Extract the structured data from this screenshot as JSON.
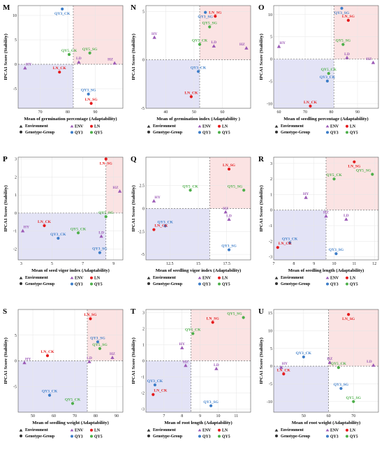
{
  "groups": {
    "ENV": {
      "label": "ENV",
      "color": "#9b59b6"
    },
    "LN": {
      "label": "LN",
      "color": "#e41a1c"
    },
    "QY3": {
      "label": "QY3",
      "color": "#3d7dc8"
    },
    "QY5": {
      "label": "QY5",
      "color": "#4daf4a"
    }
  },
  "legend": {
    "environment_label": "Environment",
    "genotype_label": "Genotype-Group",
    "env_items": [
      "ENV",
      "LN"
    ],
    "geno_items": [
      "QY3",
      "QY5"
    ]
  },
  "colors": {
    "high_quadrant": "#fbe3e3",
    "low_quadrant": "#e3e3f6",
    "grid": "#e6e6e6",
    "ref_line": "#777777"
  },
  "chart_data": [
    {
      "panel": "M",
      "type": "scatter",
      "xlabel": "Mean of germination percentage (Adaptability)",
      "ylabel": "IPCA1 Score (Stability)",
      "xlim": [
        62,
        100
      ],
      "ylim": [
        -9,
        12
      ],
      "xticks": [
        70,
        80,
        90
      ],
      "yticks": [
        -5,
        0,
        5,
        10
      ],
      "xref": 82,
      "yref": 0,
      "points": [
        {
          "label": "QY3_CK",
          "group": "QY3",
          "x": 78,
          "y": 11.3
        },
        {
          "label": "QY5_SG",
          "group": "QY5",
          "x": 88,
          "y": 2.3
        },
        {
          "label": "QY5_CK",
          "group": "QY5",
          "x": 80.5,
          "y": 2.0
        },
        {
          "label": "LD",
          "group": "ENV",
          "x": 84,
          "y": 0.4
        },
        {
          "label": "HZ",
          "group": "ENV",
          "x": 97,
          "y": 0.2
        },
        {
          "label": "HY",
          "group": "ENV",
          "x": 64.5,
          "y": -0.8
        },
        {
          "label": "LN_CK",
          "group": "LN",
          "x": 77,
          "y": -1.6
        },
        {
          "label": "QY3_SG",
          "group": "QY3",
          "x": 87.5,
          "y": -6.1
        },
        {
          "label": "LN_SG",
          "group": "LN",
          "x": 88.5,
          "y": -8.0
        }
      ]
    },
    {
      "panel": "N",
      "type": "scatter",
      "xlabel": "Mean of germination index (Adaptability )",
      "ylabel": "IPCA1 Score (Stability)",
      "xlim": [
        33,
        70
      ],
      "ylim": [
        -5,
        5.6
      ],
      "xticks": [
        40,
        50,
        60
      ],
      "yticks": [
        -5,
        0,
        5
      ],
      "xref": 52,
      "yref": 0,
      "points": [
        {
          "label": "QY3_SG",
          "group": "QY3",
          "x": 54,
          "y": 4.9
        },
        {
          "label": "LN_SG",
          "group": "LN",
          "x": 57.5,
          "y": 4.5
        },
        {
          "label": "QY5_SG",
          "group": "QY5",
          "x": 55.5,
          "y": 3.4
        },
        {
          "label": "HY",
          "group": "ENV",
          "x": 36,
          "y": 2.3
        },
        {
          "label": "QY5_CK",
          "group": "QY5",
          "x": 52,
          "y": 1.6
        },
        {
          "label": "HZ",
          "group": "ENV",
          "x": 68.5,
          "y": 1.2
        },
        {
          "label": "LD",
          "group": "ENV",
          "x": 57,
          "y": 1.4
        },
        {
          "label": "QY3_CK",
          "group": "QY3",
          "x": 51.5,
          "y": -1.2
        },
        {
          "label": "LN_CK",
          "group": "LN",
          "x": 49,
          "y": -3.8
        }
      ]
    },
    {
      "panel": "O",
      "type": "scatter",
      "xlabel": "Mean of seedling percentage (Adaptability)",
      "ylabel": "IPCA1 Score (Stability)",
      "xlim": [
        58,
        98
      ],
      "ylim": [
        -11,
        12
      ],
      "xticks": [
        60,
        70,
        80,
        90
      ],
      "yticks": [
        -10,
        -5,
        0,
        5,
        10
      ],
      "xref": 81,
      "yref": 0,
      "points": [
        {
          "label": "QY3_SG",
          "group": "QY3",
          "x": 84,
          "y": 11.4
        },
        {
          "label": "LN_SG",
          "group": "LN",
          "x": 86.5,
          "y": 8.7
        },
        {
          "label": "QY5_SG",
          "group": "QY5",
          "x": 84.5,
          "y": 3.3
        },
        {
          "label": "HY",
          "group": "ENV",
          "x": 60,
          "y": 2.8
        },
        {
          "label": "LD",
          "group": "ENV",
          "x": 86,
          "y": 0.3
        },
        {
          "label": "HZ",
          "group": "ENV",
          "x": 96,
          "y": -0.8
        },
        {
          "label": "QY5_CK",
          "group": "QY5",
          "x": 79,
          "y": -3.2
        },
        {
          "label": "QY3_CK",
          "group": "QY3",
          "x": 78.5,
          "y": -4.9
        },
        {
          "label": "LN_CK",
          "group": "LN",
          "x": 72,
          "y": -10.5
        }
      ]
    },
    {
      "panel": "P",
      "type": "scatter",
      "xlabel": "Mean of seed vigor index (Adaptability)",
      "ylabel": "IPCA1 Score (Stability)",
      "xlim": [
        2.8,
        9.6
      ],
      "ylim": [
        -2.6,
        3.1
      ],
      "xticks": [
        3,
        5,
        7,
        9
      ],
      "yticks": [
        -2,
        -1,
        0,
        1,
        2,
        3
      ],
      "xref": 8.5,
      "yref": 0,
      "points": [
        {
          "label": "LN_SG",
          "group": "LN",
          "x": 8.5,
          "y": 3.0
        },
        {
          "label": "HZ",
          "group": "ENV",
          "x": 9.4,
          "y": 1.2
        },
        {
          "label": "QY5_SG",
          "group": "QY5",
          "x": 8.5,
          "y": -0.2
        },
        {
          "label": "LN_CK",
          "group": "LN",
          "x": 4.5,
          "y": -0.7
        },
        {
          "label": "HY",
          "group": "ENV",
          "x": 3.1,
          "y": -1.0
        },
        {
          "label": "QY5_CK",
          "group": "QY5",
          "x": 6.7,
          "y": -1.1
        },
        {
          "label": "QY3_CK",
          "group": "QY3",
          "x": 5.4,
          "y": -1.4
        },
        {
          "label": "LD",
          "group": "ENV",
          "x": 8.2,
          "y": -1.3
        },
        {
          "label": "QY3_SG",
          "group": "QY3",
          "x": 8.1,
          "y": -2.2
        }
      ]
    },
    {
      "panel": "Q",
      "type": "scatter",
      "xlabel": "Mean of seedling vigor index (Adaptability)",
      "ylabel": "IPCA1 Score (Stability)",
      "xlim": [
        10.4,
        19.6
      ],
      "ylim": [
        -5.6,
        5.6
      ],
      "xticks": [
        12.5,
        15.0,
        17.5
      ],
      "yticks": [
        -5.0,
        -2.5,
        0.0,
        2.5
      ],
      "xref": 16,
      "yref": 0,
      "points": [
        {
          "label": "LN_SG",
          "group": "LN",
          "x": 17.7,
          "y": 4.3
        },
        {
          "label": "QY5_CK",
          "group": "QY5",
          "x": 14.3,
          "y": 2.0
        },
        {
          "label": "QY5_SG",
          "group": "QY5",
          "x": 19.0,
          "y": 2.0
        },
        {
          "label": "HY",
          "group": "ENV",
          "x": 11.1,
          "y": 0.8
        },
        {
          "label": "HZ",
          "group": "ENV",
          "x": 17.4,
          "y": -0.4
        },
        {
          "label": "LD",
          "group": "ENV",
          "x": 17.7,
          "y": -1.2
        },
        {
          "label": "QY3_CK",
          "group": "QY3",
          "x": 12.1,
          "y": -1.9
        },
        {
          "label": "LN_CK",
          "group": "LN",
          "x": 11.1,
          "y": -2.3
        },
        {
          "label": "QY3_SG",
          "group": "QY3",
          "x": 17.7,
          "y": -4.5
        }
      ]
    },
    {
      "panel": "R",
      "type": "scatter",
      "xlabel": "Mean of seedling length (Adaptability)",
      "ylabel": "IPCA1 Score (Stability)",
      "xlim": [
        7.0,
        12.2
      ],
      "ylim": [
        -3.2,
        3.4
      ],
      "xticks": [
        7,
        8,
        9,
        10,
        11,
        12
      ],
      "yticks": [
        -3,
        -2,
        -1,
        0,
        1,
        2,
        3
      ],
      "xref": 9.6,
      "yref": 0,
      "points": [
        {
          "label": "LN_SG",
          "group": "LN",
          "x": 11.0,
          "y": 3.1
        },
        {
          "label": "QY5_CK",
          "group": "QY5",
          "x": 10.0,
          "y": 2.0
        },
        {
          "label": "QY5_SG",
          "group": "QY5",
          "x": 11.9,
          "y": 2.3
        },
        {
          "label": "HY",
          "group": "ENV",
          "x": 8.6,
          "y": 0.8
        },
        {
          "label": "HZ",
          "group": "ENV",
          "x": 9.6,
          "y": -0.4
        },
        {
          "label": "LD",
          "group": "ENV",
          "x": 10.6,
          "y": -0.6
        },
        {
          "label": "QY3_CK",
          "group": "QY3",
          "x": 7.8,
          "y": -2.1
        },
        {
          "label": "LN_CK",
          "group": "LN",
          "x": 7.2,
          "y": -2.4
        },
        {
          "label": "QY3_SG",
          "group": "QY3",
          "x": 10.1,
          "y": -2.8
        }
      ]
    },
    {
      "panel": "S",
      "type": "scatter",
      "xlabel": "Mean of seedling weight (Adaptability)",
      "ylabel": "IPCA1 Score (Stability)",
      "xlim": [
        43,
        93
      ],
      "ylim": [
        -10,
        10
      ],
      "xticks": [
        50,
        60,
        70,
        80,
        90
      ],
      "yticks": [
        -5,
        0,
        5
      ],
      "xref": 76,
      "yref": 0,
      "points": [
        {
          "label": "LN_SG",
          "group": "LN",
          "x": 77.5,
          "y": 8.2
        },
        {
          "label": "QY3_SG",
          "group": "QY3",
          "x": 81,
          "y": 3.7
        },
        {
          "label": "QY5_SG",
          "group": "QY5",
          "x": 82,
          "y": 2.4
        },
        {
          "label": "LN_CK",
          "group": "LN",
          "x": 57,
          "y": 1.0
        },
        {
          "label": "HZ",
          "group": "ENV",
          "x": 88,
          "y": 0.6
        },
        {
          "label": "HY",
          "group": "ENV",
          "x": 46,
          "y": -0.4
        },
        {
          "label": "LD",
          "group": "ENV",
          "x": 77,
          "y": -0.2
        },
        {
          "label": "QY3_CK",
          "group": "QY3",
          "x": 58,
          "y": -6.7
        },
        {
          "label": "QY5_CK",
          "group": "QY5",
          "x": 69,
          "y": -8.3
        }
      ]
    },
    {
      "panel": "T",
      "type": "scatter",
      "xlabel": "Mean of root length (Adaptability)",
      "ylabel": "IPCA1 Score (Stability)",
      "xlim": [
        6.0,
        11.8
      ],
      "ylim": [
        -3.2,
        3.2
      ],
      "xticks": [
        7,
        8,
        9,
        10,
        11
      ],
      "yticks": [
        -3,
        -2,
        -1,
        0,
        1,
        2,
        3
      ],
      "xref": 8.5,
      "yref": 0,
      "points": [
        {
          "label": "QY5_SG",
          "group": "QY5",
          "x": 11.4,
          "y": 2.7
        },
        {
          "label": "LN_SG",
          "group": "LN",
          "x": 9.7,
          "y": 2.4
        },
        {
          "label": "QY5_CK",
          "group": "QY5",
          "x": 8.6,
          "y": 1.7
        },
        {
          "label": "HY",
          "group": "ENV",
          "x": 8.0,
          "y": 0.8
        },
        {
          "label": "HZ",
          "group": "ENV",
          "x": 8.2,
          "y": -0.3
        },
        {
          "label": "LD",
          "group": "ENV",
          "x": 9.9,
          "y": -0.5
        },
        {
          "label": "QY3_CK",
          "group": "QY3",
          "x": 6.5,
          "y": -1.5
        },
        {
          "label": "LN_CK",
          "group": "LN",
          "x": 6.4,
          "y": -2.1
        },
        {
          "label": "QY3_SG",
          "group": "QY3",
          "x": 9.6,
          "y": -2.8
        }
      ]
    },
    {
      "panel": "U",
      "type": "scatter",
      "xlabel": "Mean of root weight (Adaptability)",
      "ylabel": "IPCA1 Score (Stability)",
      "xlim": [
        38,
        80
      ],
      "ylim": [
        -13,
        16
      ],
      "xticks": [
        50,
        60,
        70
      ],
      "yticks": [
        -10,
        -5,
        0,
        5,
        10,
        15
      ],
      "xref": 60,
      "yref": 0,
      "points": [
        {
          "label": "LN_SG",
          "group": "LN",
          "x": 68,
          "y": 14.6
        },
        {
          "label": "QY3_CK",
          "group": "QY3",
          "x": 50,
          "y": 2.6
        },
        {
          "label": "HZ",
          "group": "ENV",
          "x": 60.5,
          "y": 1.0
        },
        {
          "label": "HY",
          "group": "ENV",
          "x": 41,
          "y": -0.4
        },
        {
          "label": "LD",
          "group": "ENV",
          "x": 78,
          "y": 0.2
        },
        {
          "label": "QY5_CK",
          "group": "QY5",
          "x": 64,
          "y": -0.4
        },
        {
          "label": "LN_CK",
          "group": "LN",
          "x": 42,
          "y": -2.2
        },
        {
          "label": "QY3_SG",
          "group": "QY3",
          "x": 65,
          "y": -6.3
        },
        {
          "label": "QY5_SG",
          "group": "QY5",
          "x": 70,
          "y": -10.0
        }
      ]
    }
  ]
}
